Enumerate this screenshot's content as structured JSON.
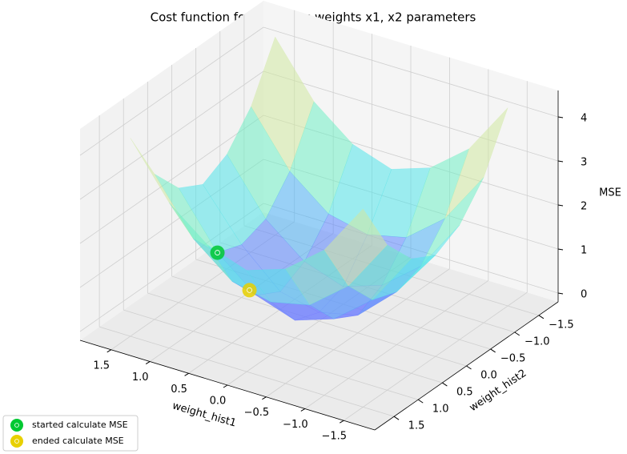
{
  "chart_data": {
    "type": "surface3d",
    "title": "Cost function for all values weights x1, x2 parameters",
    "x_label": "weight_hist1",
    "y_label": "weight_hist2",
    "z_label": "MSE",
    "xlim": [
      -1.9,
      1.9
    ],
    "ylim": [
      -1.9,
      1.9
    ],
    "zlim": [
      -0.2,
      4.6
    ],
    "xticks": [
      {
        "value": -1.5,
        "label": "−1.5"
      },
      {
        "value": -1.0,
        "label": "−1.0"
      },
      {
        "value": -0.5,
        "label": "−0.5"
      },
      {
        "value": 0.0,
        "label": "0.0"
      },
      0.5,
      {
        "value": 1.0,
        "label": "1.0"
      },
      1.5
    ],
    "yticks": [
      {
        "value": -1.5,
        "label": "−1.5"
      },
      {
        "value": -1.0,
        "label": "−1.0"
      },
      {
        "value": -0.5,
        "label": "−0.5"
      },
      {
        "value": 0.0,
        "label": "0.0"
      },
      0.5,
      {
        "value": 1.0,
        "label": "1.0"
      },
      1.5
    ],
    "zticks": [
      0,
      1,
      2,
      3,
      4
    ],
    "grid": true,
    "colormap": [
      "#b060ff",
      "#4a8cff",
      "#50e8e8",
      "#90f5a0",
      "#f8e0a0",
      "#ff5050"
    ],
    "surface": {
      "x": [
        -1.5,
        -1.0,
        -0.5,
        0.0,
        0.5,
        1.0,
        1.5
      ],
      "y": [
        -1.5,
        -1.0,
        -0.5,
        0.0,
        0.5,
        1.0,
        1.5
      ],
      "z": [
        [
          4.3,
          3.1,
          2.4,
          2.1,
          2.4,
          3.1,
          4.3
        ],
        [
          3.1,
          1.9,
          1.2,
          1.0,
          1.2,
          1.9,
          3.1
        ],
        [
          2.4,
          1.2,
          0.5,
          0.2,
          0.5,
          1.2,
          2.4
        ],
        [
          2.1,
          1.0,
          0.2,
          0.0,
          0.2,
          1.0,
          2.1
        ],
        [
          2.4,
          1.2,
          0.5,
          0.2,
          0.5,
          1.2,
          2.4
        ],
        [
          3.1,
          1.9,
          1.2,
          1.0,
          1.2,
          1.9,
          3.1
        ],
        [
          4.3,
          3.1,
          2.4,
          2.1,
          2.4,
          3.1,
          4.3
        ]
      ]
    },
    "series": [
      {
        "name": "started calculate MSE",
        "color": "#00c832",
        "x": [
          1.0
        ],
        "y": [
          0.5
        ],
        "z": [
          1.2
        ]
      },
      {
        "name": "ended calculate MSE",
        "color": "#e8d000",
        "x": [
          0.4
        ],
        "y": [
          0.8
        ],
        "z": [
          0.9
        ]
      }
    ],
    "legend": "lower left"
  }
}
